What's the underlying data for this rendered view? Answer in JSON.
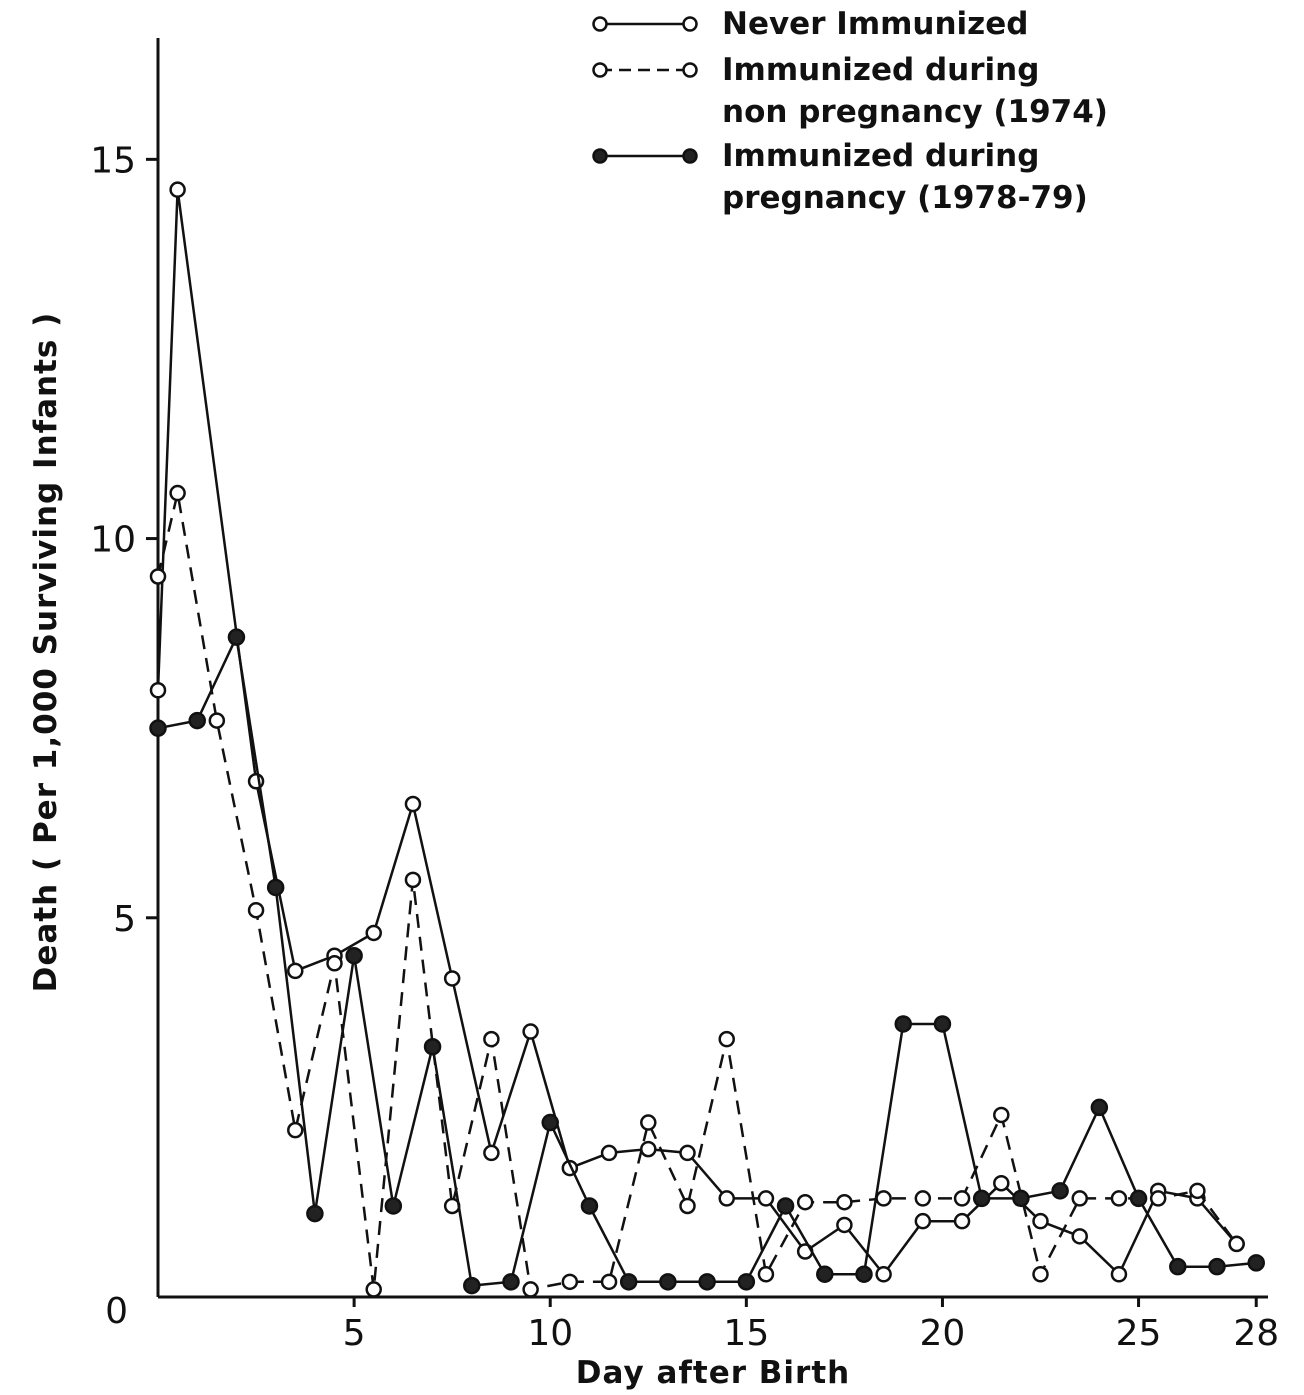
{
  "chart_data": {
    "type": "line",
    "title": "",
    "xlabel": "Day after Birth",
    "ylabel": "Death  ( Per 1,000 Surviving Infants )",
    "xlim": [
      0,
      28.3
    ],
    "ylim": [
      0,
      16.6
    ],
    "x_ticks": [
      5,
      10,
      15,
      20,
      25,
      28
    ],
    "x_tick_labels": [
      "5",
      "10",
      "15",
      "20",
      "25",
      "28"
    ],
    "y_ticks": [
      0,
      5,
      10,
      15
    ],
    "y_tick_labels": [
      "0",
      "5",
      "10",
      "15"
    ],
    "grid": false,
    "legend_position": "top-right",
    "series": [
      {
        "name": "Never Immunized",
        "style": "solid",
        "marker": "open",
        "x": [
          0,
          0.5,
          2.5,
          3.5,
          4.5,
          5.5,
          6.5,
          7.5,
          8.5,
          9.5,
          10.5,
          11.5,
          12.5,
          13.5,
          14.5,
          15.5,
          16.5,
          17.5,
          18.5,
          19.5,
          20.5,
          21.5,
          22.5,
          23.5,
          24.5,
          25.5,
          26.5,
          27.5
        ],
        "y": [
          8.0,
          14.6,
          6.8,
          4.3,
          4.5,
          4.8,
          6.5,
          4.2,
          1.9,
          3.5,
          1.7,
          1.9,
          1.95,
          1.9,
          1.3,
          1.3,
          0.6,
          0.95,
          0.3,
          1.0,
          1.0,
          1.5,
          1.0,
          0.8,
          0.3,
          1.4,
          1.3,
          0.7
        ]
      },
      {
        "name": "Immunized during non pregnancy (1974)",
        "style": "dashed",
        "marker": "open",
        "x": [
          0,
          0.5,
          1.5,
          2.5,
          3.5,
          4.5,
          5.5,
          6.5,
          7.5,
          8.5,
          9.5,
          10.5,
          11.5,
          12.5,
          13.5,
          14.5,
          15.5,
          16.5,
          17.5,
          18.5,
          19.5,
          20.5,
          21.5,
          22.5,
          23.5,
          24.5,
          25.5,
          26.5,
          27.5
        ],
        "y": [
          9.5,
          10.6,
          7.6,
          5.1,
          2.2,
          4.4,
          0.1,
          5.5,
          1.2,
          3.4,
          0.1,
          0.2,
          0.2,
          2.3,
          1.2,
          3.4,
          0.3,
          1.25,
          1.25,
          1.3,
          1.3,
          1.3,
          2.4,
          0.3,
          1.3,
          1.3,
          1.3,
          1.4,
          0.7
        ]
      },
      {
        "name": "Immunized during pregnancy (1978-79)",
        "style": "solid",
        "marker": "filled",
        "x": [
          0,
          1,
          2,
          3,
          4,
          5,
          6,
          7,
          8,
          9,
          10,
          11,
          12,
          13,
          14,
          15,
          16,
          17,
          18,
          19,
          20,
          21,
          22,
          23,
          24,
          25,
          26,
          27,
          28
        ],
        "y": [
          7.5,
          7.6,
          8.7,
          5.4,
          1.1,
          4.5,
          1.2,
          3.3,
          0.15,
          0.2,
          2.3,
          1.2,
          0.2,
          0.2,
          0.2,
          0.2,
          1.2,
          0.3,
          0.3,
          3.6,
          3.6,
          1.3,
          1.3,
          1.4,
          2.5,
          1.3,
          0.4,
          0.4,
          0.45
        ]
      }
    ]
  },
  "legend": {
    "items": [
      {
        "lines": [
          "Never  Immunized"
        ]
      },
      {
        "lines": [
          "Immunized  during",
          "non  pregnancy (1974)"
        ]
      },
      {
        "lines": [
          "Immunized  during",
          "pregnancy (1978-79)"
        ]
      }
    ]
  }
}
